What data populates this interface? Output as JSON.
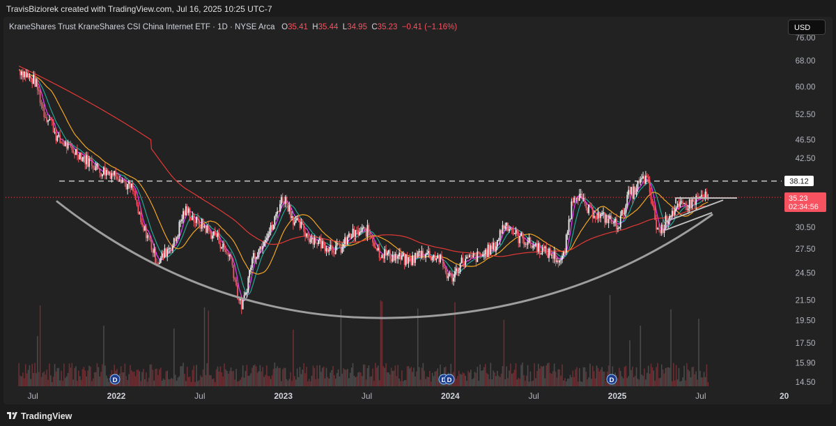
{
  "header": {
    "text": "TravisBiziorek created with TradingView.com, Jul 16, 2025 10:25 UTC-7"
  },
  "legend": {
    "symbol": "KraneShares Trust KraneShares CSI China Internet ETF · 1D · NYSE Arca",
    "open_label": "O",
    "open": "35.41",
    "high_label": "H",
    "high": "35.44",
    "low_label": "L",
    "low": "34.95",
    "close_label": "C",
    "close": "35.23",
    "change": "−0.41 (−1.16%)"
  },
  "currency_button": "USD",
  "price_tags": {
    "resistance": "38.12",
    "last": "35.23",
    "countdown": "02:34:56"
  },
  "footer": {
    "brand": "TradingView"
  },
  "colors": {
    "background": "#222222",
    "up": "#f0f0f0",
    "down": "#f7525f",
    "ma_fast": "#e040fb",
    "ma_mid": "#26a69a",
    "ma_slow": "#f5a623",
    "ma_long": "#e53935",
    "arc": "#9e9e9e",
    "resistance": "#bdbdbd"
  },
  "chart_data": {
    "type": "line",
    "scale": "log",
    "x_ticks": [
      "Jul",
      "2022",
      "Jul",
      "2023",
      "Jul",
      "2024",
      "Jul",
      "2025",
      "Jul",
      "20"
    ],
    "y_ticks": [
      76.0,
      68.0,
      60.0,
      52.5,
      46.5,
      42.5,
      38.12,
      30.5,
      27.5,
      24.5,
      21.5,
      19.5,
      17.5,
      15.9,
      14.5
    ],
    "y_labels": [
      "76.00",
      "68.00",
      "60.00",
      "52.50",
      "46.50",
      "42.50",
      "30.50",
      "27.50",
      "24.50",
      "21.50",
      "19.50",
      "17.50",
      "15.90",
      "14.50"
    ],
    "resistance_level": 38.12,
    "last_price": 35.23,
    "dividend_markers": [
      "D",
      "D",
      "D",
      "D"
    ],
    "series": [
      {
        "name": "price",
        "x": [
          "2021-06",
          "2021-07",
          "2021-08",
          "2021-09",
          "2021-10",
          "2021-11",
          "2021-12",
          "2022-01",
          "2022-02",
          "2022-03",
          "2022-04",
          "2022-05",
          "2022-06",
          "2022-07",
          "2022-08",
          "2022-09",
          "2022-10",
          "2022-11",
          "2022-12",
          "2023-01",
          "2023-02",
          "2023-03",
          "2023-04",
          "2023-05",
          "2023-06",
          "2023-07",
          "2023-08",
          "2023-09",
          "2023-10",
          "2023-11",
          "2023-12",
          "2024-01",
          "2024-02",
          "2024-03",
          "2024-04",
          "2024-05",
          "2024-06",
          "2024-07",
          "2024-08",
          "2024-09",
          "2024-10",
          "2024-11",
          "2024-12",
          "2025-01",
          "2025-02",
          "2025-03",
          "2025-04",
          "2025-05",
          "2025-06",
          "2025-07"
        ],
        "values": [
          65.0,
          62.0,
          52.0,
          46.0,
          44.0,
          42.0,
          40.0,
          39.5,
          37.0,
          30.0,
          26.0,
          28.0,
          33.0,
          31.0,
          29.5,
          27.0,
          21.0,
          27.0,
          30.0,
          35.0,
          31.0,
          29.0,
          28.0,
          27.5,
          29.5,
          30.0,
          27.0,
          26.5,
          26.0,
          27.0,
          26.5,
          24.0,
          26.0,
          26.5,
          27.5,
          31.0,
          29.0,
          28.0,
          27.0,
          26.0,
          36.0,
          33.0,
          32.0,
          31.0,
          36.0,
          38.5,
          30.0,
          33.0,
          34.0,
          35.23
        ]
      }
    ]
  }
}
